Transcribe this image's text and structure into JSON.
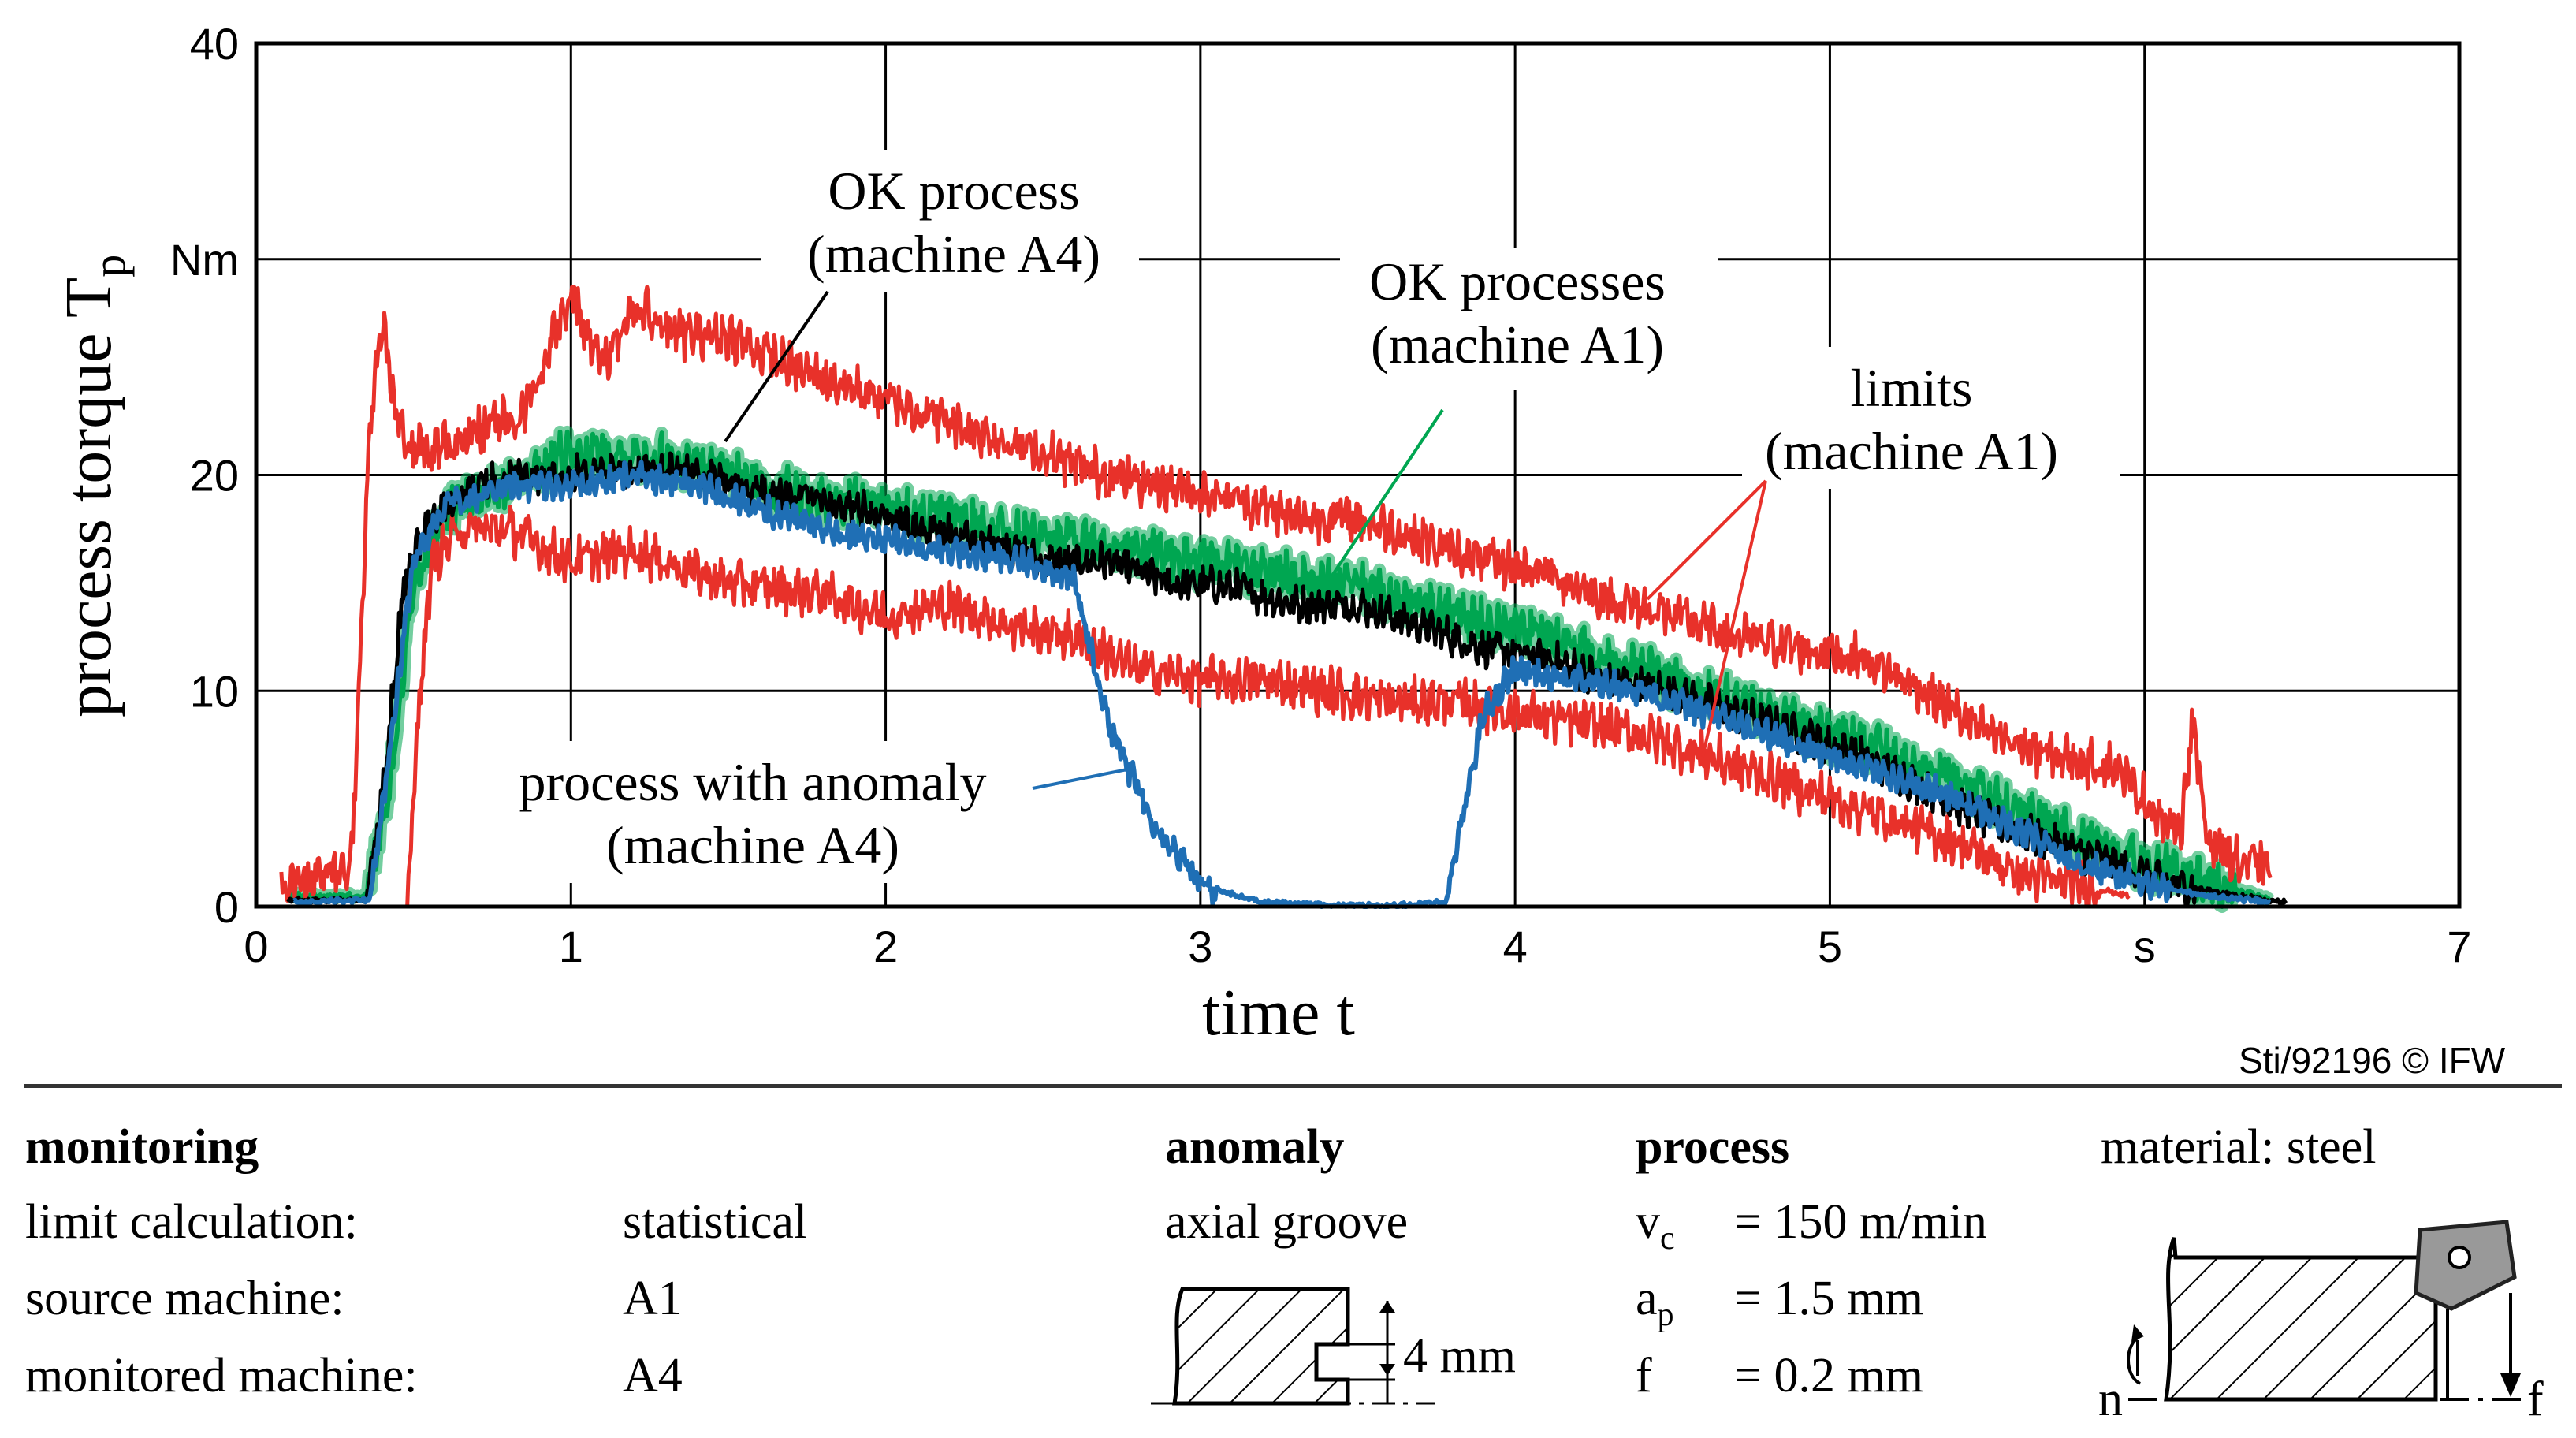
{
  "chart_data": {
    "type": "line",
    "xlabel": "time t",
    "ylabel": "process torque T",
    "ylabel_sub": "p",
    "y_unit": "Nm",
    "x_unit": "s",
    "xlim": [
      0,
      7
    ],
    "ylim": [
      0,
      40
    ],
    "x_ticks": [
      "0",
      "1",
      "2",
      "3",
      "4",
      "5",
      "s",
      "7"
    ],
    "y_ticks": [
      "0",
      "10",
      "20",
      "Nm",
      "40"
    ],
    "grid": true,
    "annotations": [
      {
        "line1": "OK process",
        "line2": "(machine A4)",
        "color": "#000000"
      },
      {
        "line1": "OK processes",
        "line2": "(machine A1)",
        "color": "#00a651"
      },
      {
        "line1": "limits",
        "line2": "(machine A1)",
        "color": "#e8312a"
      },
      {
        "line1": "process with anomaly",
        "line2": "(machine A4)",
        "color": "#1f6fb5"
      }
    ],
    "series": [
      {
        "color": "#e8312a",
        "kind": "upper-limit",
        "points": [
          [
            0.08,
            1.2
          ],
          [
            0.3,
            1.5
          ],
          [
            0.33,
            11
          ],
          [
            0.36,
            22
          ],
          [
            0.4,
            27
          ],
          [
            0.45,
            22
          ],
          [
            0.55,
            21
          ],
          [
            0.7,
            22
          ],
          [
            0.85,
            23
          ],
          [
            1.0,
            28.5
          ],
          [
            1.1,
            25
          ],
          [
            1.2,
            28
          ],
          [
            1.35,
            26.5
          ],
          [
            1.5,
            26.5
          ],
          [
            1.7,
            25
          ],
          [
            1.9,
            24
          ],
          [
            2.1,
            23
          ],
          [
            2.3,
            22
          ],
          [
            2.5,
            21
          ],
          [
            2.7,
            20
          ],
          [
            2.9,
            19.5
          ],
          [
            3.1,
            19
          ],
          [
            3.3,
            18
          ],
          [
            3.5,
            18
          ],
          [
            3.7,
            17
          ],
          [
            3.9,
            16
          ],
          [
            4.1,
            15.5
          ],
          [
            4.3,
            14.2
          ],
          [
            4.5,
            13.5
          ],
          [
            4.7,
            12.5
          ],
          [
            4.9,
            12
          ],
          [
            5.1,
            11.5
          ],
          [
            5.3,
            10
          ],
          [
            5.5,
            8
          ],
          [
            5.7,
            7
          ],
          [
            5.9,
            6.5
          ],
          [
            6.0,
            5
          ],
          [
            6.08,
            3.5
          ],
          [
            6.12,
            4
          ],
          [
            6.15,
            8.5
          ],
          [
            6.2,
            3.2
          ],
          [
            6.3,
            2
          ],
          [
            6.4,
            1.8
          ]
        ]
      },
      {
        "color": "#e8312a",
        "kind": "lower-limit",
        "points": [
          [
            0.48,
            0
          ],
          [
            0.52,
            10
          ],
          [
            0.56,
            16
          ],
          [
            0.65,
            17.5
          ],
          [
            0.8,
            17.5
          ],
          [
            1.0,
            16
          ],
          [
            1.2,
            16.5
          ],
          [
            1.5,
            15
          ],
          [
            1.8,
            14.5
          ],
          [
            2.0,
            13.5
          ],
          [
            2.2,
            14
          ],
          [
            2.4,
            13
          ],
          [
            2.6,
            12.5
          ],
          [
            2.8,
            11
          ],
          [
            3.0,
            10.5
          ],
          [
            3.2,
            10.5
          ],
          [
            3.4,
            10
          ],
          [
            3.6,
            9.5
          ],
          [
            3.8,
            9.5
          ],
          [
            4.0,
            9
          ],
          [
            4.2,
            8.5
          ],
          [
            4.4,
            8
          ],
          [
            4.6,
            7
          ],
          [
            4.8,
            6
          ],
          [
            5.0,
            5
          ],
          [
            5.2,
            4
          ],
          [
            5.4,
            3
          ],
          [
            5.6,
            1.5
          ],
          [
            5.8,
            1
          ],
          [
            5.95,
            0.5
          ]
        ]
      },
      {
        "color": "#00a651",
        "kind": "ok-a1",
        "points": [
          [
            0.1,
            0.5
          ],
          [
            0.35,
            0.5
          ],
          [
            0.42,
            5
          ],
          [
            0.5,
            15
          ],
          [
            0.6,
            18.5
          ],
          [
            0.8,
            19.5
          ],
          [
            1.0,
            21
          ],
          [
            1.2,
            21
          ],
          [
            1.4,
            20.5
          ],
          [
            1.6,
            19.5
          ],
          [
            1.8,
            19
          ],
          [
            2.0,
            18.5
          ],
          [
            2.2,
            18
          ],
          [
            2.4,
            17.5
          ],
          [
            2.6,
            17
          ],
          [
            2.8,
            16.5
          ],
          [
            3.0,
            16
          ],
          [
            3.2,
            15.5
          ],
          [
            3.4,
            15
          ],
          [
            3.6,
            14.5
          ],
          [
            3.8,
            13.5
          ],
          [
            4.0,
            13
          ],
          [
            4.2,
            12
          ],
          [
            4.4,
            11
          ],
          [
            4.6,
            10
          ],
          [
            4.8,
            9
          ],
          [
            5.0,
            8
          ],
          [
            5.2,
            7
          ],
          [
            5.4,
            6
          ],
          [
            5.6,
            4.5
          ],
          [
            5.8,
            3
          ],
          [
            6.0,
            2
          ],
          [
            6.2,
            1.2
          ],
          [
            6.4,
            0.3
          ]
        ]
      },
      {
        "color": "#000000",
        "kind": "ok-a4",
        "points": [
          [
            0.1,
            0.3
          ],
          [
            0.35,
            0.3
          ],
          [
            0.4,
            5
          ],
          [
            0.47,
            15
          ],
          [
            0.55,
            18
          ],
          [
            0.7,
            19.5
          ],
          [
            0.9,
            20
          ],
          [
            1.1,
            20
          ],
          [
            1.3,
            20.5
          ],
          [
            1.5,
            19.5
          ],
          [
            1.7,
            19
          ],
          [
            1.9,
            18.5
          ],
          [
            2.1,
            17.5
          ],
          [
            2.3,
            17
          ],
          [
            2.5,
            16
          ],
          [
            2.7,
            16
          ],
          [
            2.9,
            15
          ],
          [
            3.1,
            14.8
          ],
          [
            3.3,
            14
          ],
          [
            3.5,
            14
          ],
          [
            3.7,
            13
          ],
          [
            3.9,
            12
          ],
          [
            4.1,
            11.5
          ],
          [
            4.3,
            10.5
          ],
          [
            4.5,
            10
          ],
          [
            4.7,
            9
          ],
          [
            4.9,
            8
          ],
          [
            5.1,
            7
          ],
          [
            5.3,
            5.5
          ],
          [
            5.5,
            4
          ],
          [
            5.7,
            3
          ],
          [
            5.9,
            2
          ],
          [
            6.1,
            1
          ],
          [
            6.3,
            0.5
          ],
          [
            6.45,
            0.2
          ]
        ]
      },
      {
        "color": "#1f6fb5",
        "kind": "anomaly-a4",
        "points": [
          [
            0.12,
            0.2
          ],
          [
            0.36,
            0.3
          ],
          [
            0.43,
            8
          ],
          [
            0.5,
            16
          ],
          [
            0.6,
            18.5
          ],
          [
            0.8,
            19.5
          ],
          [
            1.0,
            19.5
          ],
          [
            1.2,
            20
          ],
          [
            1.4,
            19.5
          ],
          [
            1.6,
            18.5
          ],
          [
            1.8,
            17.5
          ],
          [
            2.0,
            17
          ],
          [
            2.2,
            16.5
          ],
          [
            2.4,
            16
          ],
          [
            2.5,
            15.8
          ],
          [
            2.6,
            15
          ],
          [
            2.65,
            12
          ],
          [
            2.7,
            9
          ],
          [
            2.75,
            7
          ],
          [
            2.85,
            4
          ],
          [
            3.0,
            1
          ],
          [
            3.2,
            0.2
          ],
          [
            3.6,
            0
          ],
          [
            3.78,
            0.2
          ],
          [
            3.83,
            4
          ],
          [
            3.9,
            9
          ],
          [
            4.0,
            11
          ],
          [
            4.2,
            10.5
          ],
          [
            4.4,
            10
          ],
          [
            4.6,
            9
          ],
          [
            4.8,
            8
          ],
          [
            5.0,
            7
          ],
          [
            5.2,
            6
          ],
          [
            5.4,
            5
          ],
          [
            5.6,
            3.5
          ],
          [
            5.8,
            2
          ],
          [
            6.0,
            1
          ],
          [
            6.2,
            0.5
          ],
          [
            6.4,
            0.2
          ]
        ]
      }
    ]
  },
  "credit": "Sti/92196 © IFW",
  "info": {
    "monitoring": {
      "heading": "monitoring",
      "rows": [
        {
          "label": "limit calculation:",
          "value": "statistical"
        },
        {
          "label": "source machine:",
          "value": "A1"
        },
        {
          "label": "monitored machine:",
          "value": "A4"
        }
      ]
    },
    "anomaly": {
      "heading": "anomaly",
      "type": "axial groove",
      "dimension": "4 mm"
    },
    "process": {
      "heading": "process",
      "vc_sym": "v",
      "vc_sub": "c",
      "vc_val": "= 150 m/min",
      "ap_sym": "a",
      "ap_sub": "p",
      "ap_val": "= 1.5 mm",
      "f_sym": "f",
      "f_val": "= 0.2 mm"
    },
    "material": "material: steel",
    "sketch": {
      "n": "n",
      "f": "f"
    }
  }
}
